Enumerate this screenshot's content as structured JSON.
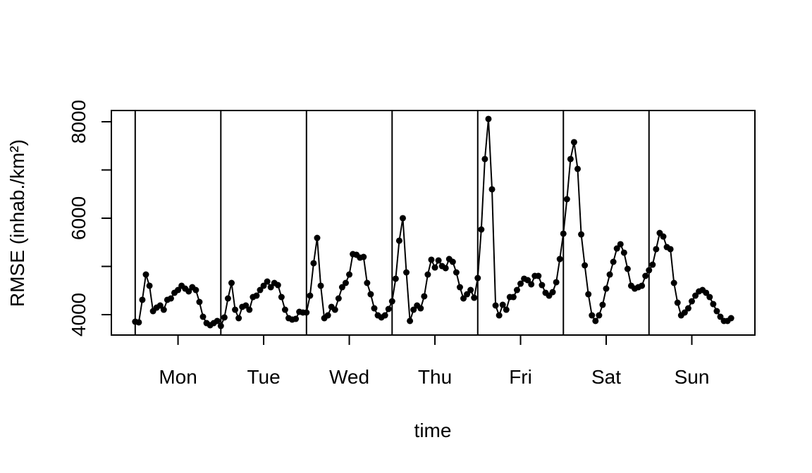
{
  "chart_data": {
    "type": "line",
    "x_label": "time",
    "y_label": "RMSE (inhab./km²)",
    "color": "#000000",
    "markers": true,
    "x": [
      1,
      2,
      3,
      4,
      5,
      6,
      7,
      8,
      9,
      10,
      11,
      12,
      13,
      14,
      15,
      16,
      17,
      18,
      19,
      20,
      21,
      22,
      23,
      24,
      25,
      26,
      27,
      28,
      29,
      30,
      31,
      32,
      33,
      34,
      35,
      36,
      37,
      38,
      39,
      40,
      41,
      42,
      43,
      44,
      45,
      46,
      47,
      48,
      49,
      50,
      51,
      52,
      53,
      54,
      55,
      56,
      57,
      58,
      59,
      60,
      61,
      62,
      63,
      64,
      65,
      66,
      67,
      68,
      69,
      70,
      71,
      72,
      73,
      74,
      75,
      76,
      77,
      78,
      79,
      80,
      81,
      82,
      83,
      84,
      85,
      86,
      87,
      88,
      89,
      90,
      91,
      92,
      93,
      94,
      95,
      96,
      97,
      98,
      99,
      100,
      101,
      102,
      103,
      104,
      105,
      106,
      107,
      108,
      109,
      110,
      111,
      112,
      113,
      114,
      115,
      116,
      117,
      118,
      119,
      120,
      121,
      122,
      123,
      124,
      125,
      126,
      127,
      128,
      129,
      130,
      131,
      132,
      133,
      134,
      135,
      136,
      137,
      138,
      139,
      140,
      141,
      142,
      143,
      144,
      145,
      146,
      147,
      148,
      149,
      150,
      151,
      152,
      153,
      154,
      155,
      156,
      157,
      158,
      159,
      160,
      161,
      162,
      163,
      164,
      165,
      166,
      167,
      168
    ],
    "values": [
      3854,
      3840,
      4307,
      4832,
      4599,
      4073,
      4146,
      4190,
      4102,
      4307,
      4336,
      4453,
      4511,
      4599,
      4540,
      4482,
      4569,
      4511,
      4263,
      3956,
      3825,
      3781,
      3825,
      3869,
      3766,
      3942,
      4336,
      4657,
      4102,
      3927,
      4161,
      4190,
      4102,
      4365,
      4394,
      4511,
      4599,
      4686,
      4569,
      4657,
      4613,
      4365,
      4102,
      3927,
      3898,
      3912,
      4058,
      4044,
      4044,
      4394,
      5066,
      5591,
      4599,
      3927,
      3985,
      4161,
      4102,
      4336,
      4569,
      4657,
      4832,
      5255,
      5241,
      5182,
      5197,
      4657,
      4423,
      4131,
      3985,
      3942,
      3985,
      4117,
      4277,
      4745,
      5533,
      6000,
      4876,
      3869,
      4102,
      4190,
      4131,
      4380,
      4832,
      5139,
      4978,
      5124,
      5007,
      4964,
      5153,
      5095,
      4876,
      4569,
      4336,
      4423,
      4511,
      4350,
      4759,
      5766,
      7226,
      8058,
      6599,
      4190,
      3985,
      4204,
      4102,
      4365,
      4365,
      4511,
      4642,
      4745,
      4715,
      4628,
      4803,
      4803,
      4613,
      4453,
      4394,
      4467,
      4672,
      5153,
      5679,
      6394,
      7226,
      7577,
      7022,
      5664,
      5022,
      4423,
      3985,
      3869,
      3985,
      4204,
      4540,
      4832,
      5095,
      5372,
      5460,
      5285,
      4949,
      4599,
      4540,
      4569,
      4599,
      4803,
      4920,
      5036,
      5358,
      5693,
      5620,
      5401,
      5358,
      4657,
      4248,
      3985,
      4044,
      4131,
      4277,
      4394,
      4482,
      4511,
      4453,
      4365,
      4219,
      4073,
      3956,
      3869,
      3869,
      3927
    ],
    "xlim": [
      -5.68,
      174.68
    ],
    "ylim": [
      3577,
      8233
    ],
    "xticks": [
      {
        "value": 13,
        "label": "Mon"
      },
      {
        "value": 37,
        "label": "Tue"
      },
      {
        "value": 61,
        "label": "Wed"
      },
      {
        "value": 85,
        "label": "Thu"
      },
      {
        "value": 109,
        "label": "Fri"
      },
      {
        "value": 133,
        "label": "Sat"
      },
      {
        "value": 157,
        "label": "Sun"
      }
    ],
    "yticks": [
      4000,
      6000,
      8000
    ],
    "yminor_ticks": [
      5000,
      7000
    ],
    "vlines": [
      1,
      25,
      49,
      73,
      97,
      121,
      145
    ]
  }
}
